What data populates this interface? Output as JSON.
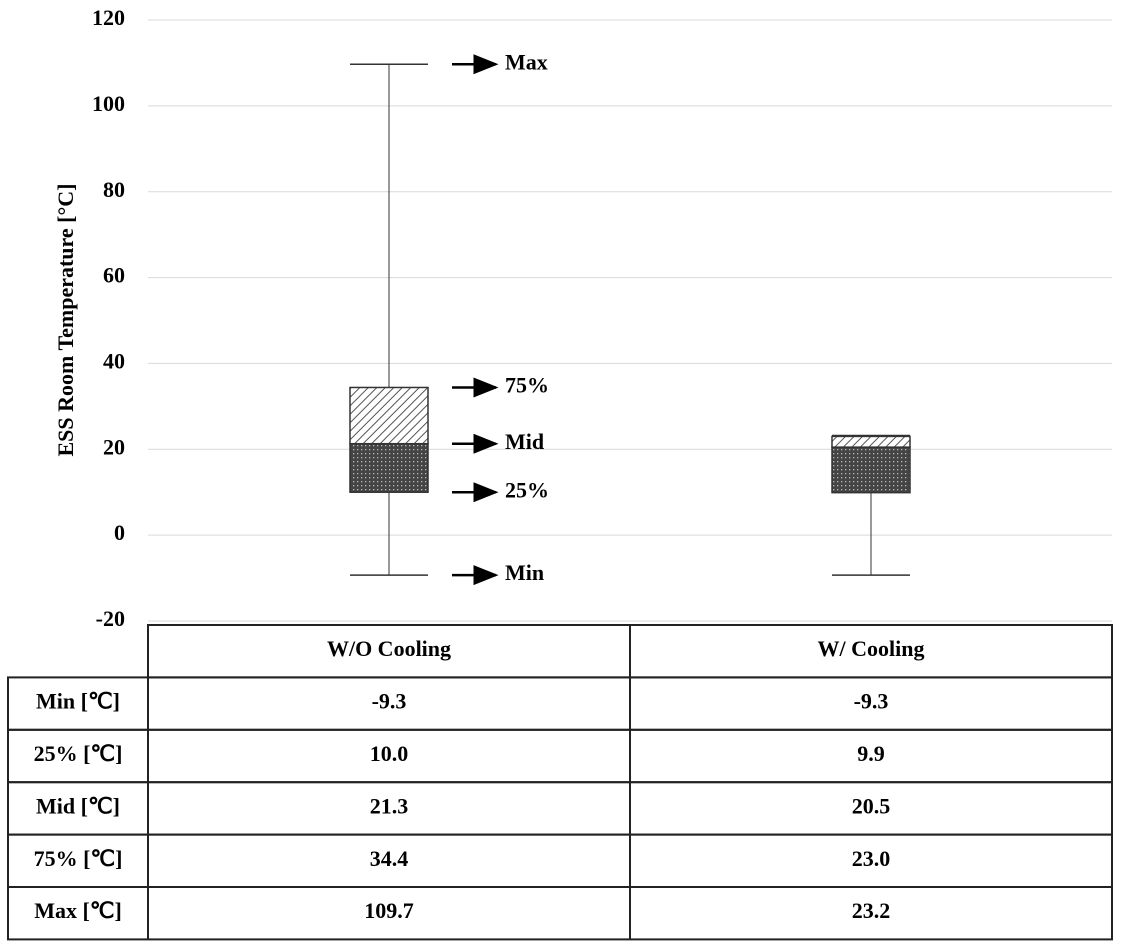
{
  "chart_data": {
    "type": "box",
    "ylabel": "ESS Room Temperature [°C]",
    "ylim": [
      -20,
      120
    ],
    "yticks": [
      -20,
      0,
      20,
      40,
      60,
      80,
      100,
      120
    ],
    "grid": true,
    "categories": [
      "W/O Cooling",
      "W/ Cooling"
    ],
    "stats": [
      {
        "name": "Min [℃]",
        "values": [
          -9.3,
          -9.3
        ],
        "value_labels": [
          "-9.3",
          "-9.3"
        ]
      },
      {
        "name": "25% [℃]",
        "values": [
          10.0,
          9.9
        ],
        "value_labels": [
          "10.0",
          "9.9"
        ]
      },
      {
        "name": "Mid [℃]",
        "values": [
          21.3,
          20.5
        ],
        "value_labels": [
          "21.3",
          "20.5"
        ]
      },
      {
        "name": "75% [℃]",
        "values": [
          34.4,
          23.0
        ],
        "value_labels": [
          "34.4",
          "23.0"
        ]
      },
      {
        "name": "Max [℃]",
        "values": [
          109.7,
          23.2
        ],
        "value_labels": [
          "109.7",
          "23.2"
        ]
      }
    ],
    "annotations": [
      "Min",
      "25%",
      "Mid",
      "75%",
      "Max"
    ]
  }
}
